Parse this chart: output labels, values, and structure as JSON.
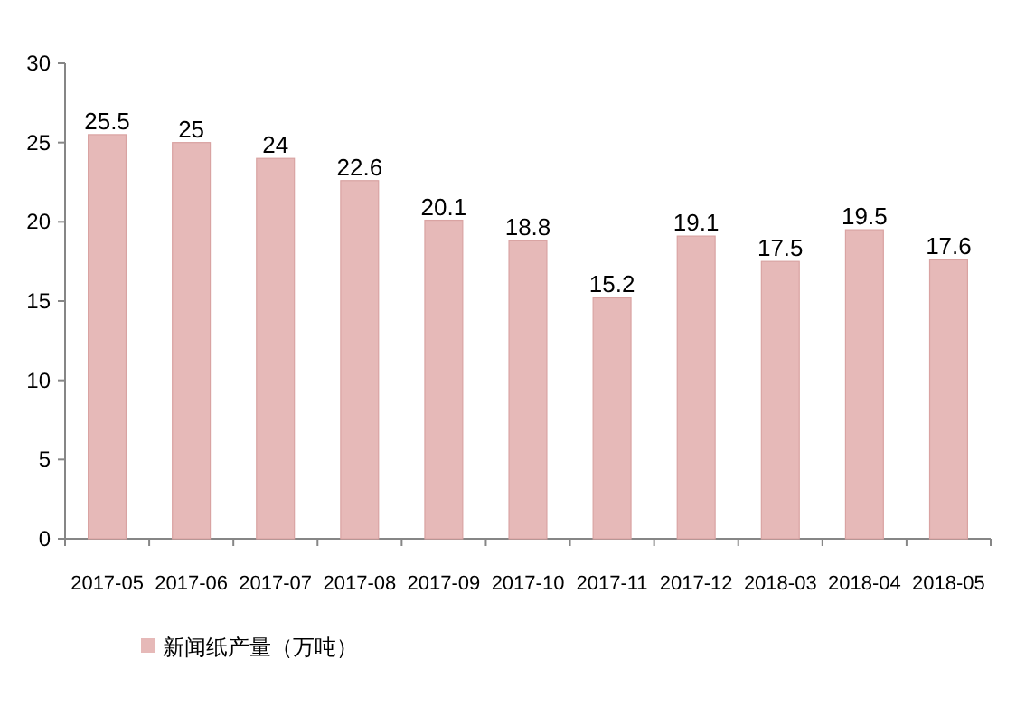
{
  "chart_data": {
    "type": "bar",
    "categories": [
      "2017-05",
      "2017-06",
      "2017-07",
      "2017-08",
      "2017-09",
      "2017-10",
      "2017-11",
      "2017-12",
      "2018-03",
      "2018-04",
      "2018-05"
    ],
    "series": [
      {
        "name": "新闻纸产量（万吨）",
        "color": "#e6b9b8",
        "values": [
          25.5,
          25,
          24,
          22.6,
          20.1,
          18.8,
          15.2,
          19.1,
          17.5,
          19.5,
          17.6
        ]
      }
    ],
    "ylim": [
      0,
      30
    ],
    "yticks": [
      0,
      5,
      10,
      15,
      20,
      25,
      30
    ],
    "data_labels": true,
    "legend": "bottom left"
  }
}
